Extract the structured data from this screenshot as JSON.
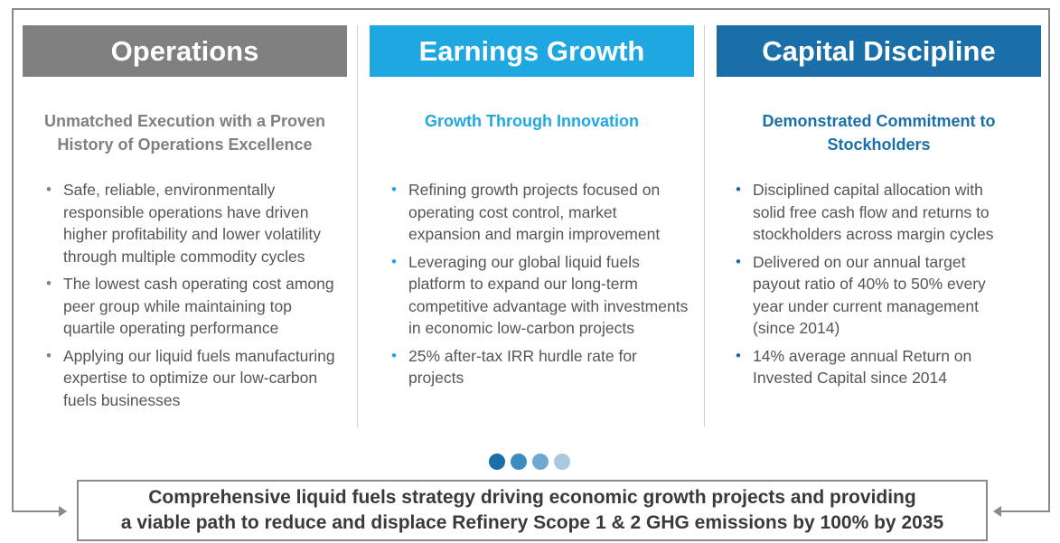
{
  "colors": {
    "operations": "#808080",
    "earnings": "#1ea7e0",
    "capital": "#1a6fa9",
    "frame": "#8a8a8a",
    "dots": [
      "#1a6fa9",
      "#3d8cc0",
      "#6fa9d1",
      "#a9c9e3"
    ]
  },
  "columns": [
    {
      "title": "Operations",
      "subtitle_lines": [
        "Unmatched Execution with a Proven",
        "History of Operations Excellence"
      ],
      "bullets": [
        "Safe, reliable, environmentally responsible operations have driven higher profitability and lower volatility through multiple commodity cycles",
        "The lowest cash operating cost among peer group while maintaining top quartile operating performance",
        "Applying our liquid fuels manufacturing expertise to optimize our low-carbon fuels businesses"
      ]
    },
    {
      "title": "Earnings Growth",
      "subtitle_lines": [
        "Growth Through Innovation"
      ],
      "bullets": [
        "Refining growth projects focused on operating cost control, market expansion and margin improvement",
        "Leveraging our global liquid fuels platform to expand our long-term competitive advantage with investments in economic low-carbon projects",
        "25% after-tax IRR hurdle rate for projects"
      ]
    },
    {
      "title": "Capital Discipline",
      "subtitle_lines": [
        "Demonstrated Commitment to",
        "Stockholders"
      ],
      "bullets": [
        "Disciplined capital allocation with solid free cash flow and returns to stockholders across margin cycles",
        "Delivered on our annual target payout ratio of 40% to 50% every year under current management (since 2014)",
        "14% average annual Return on Invested Capital since 2014"
      ]
    }
  ],
  "bottom": {
    "line1": "Comprehensive liquid fuels strategy driving economic growth projects and providing",
    "line2": "a viable path to reduce and displace Refinery Scope 1 & 2 GHG emissions by 100% by 2035"
  },
  "bullet_glyph": "•"
}
